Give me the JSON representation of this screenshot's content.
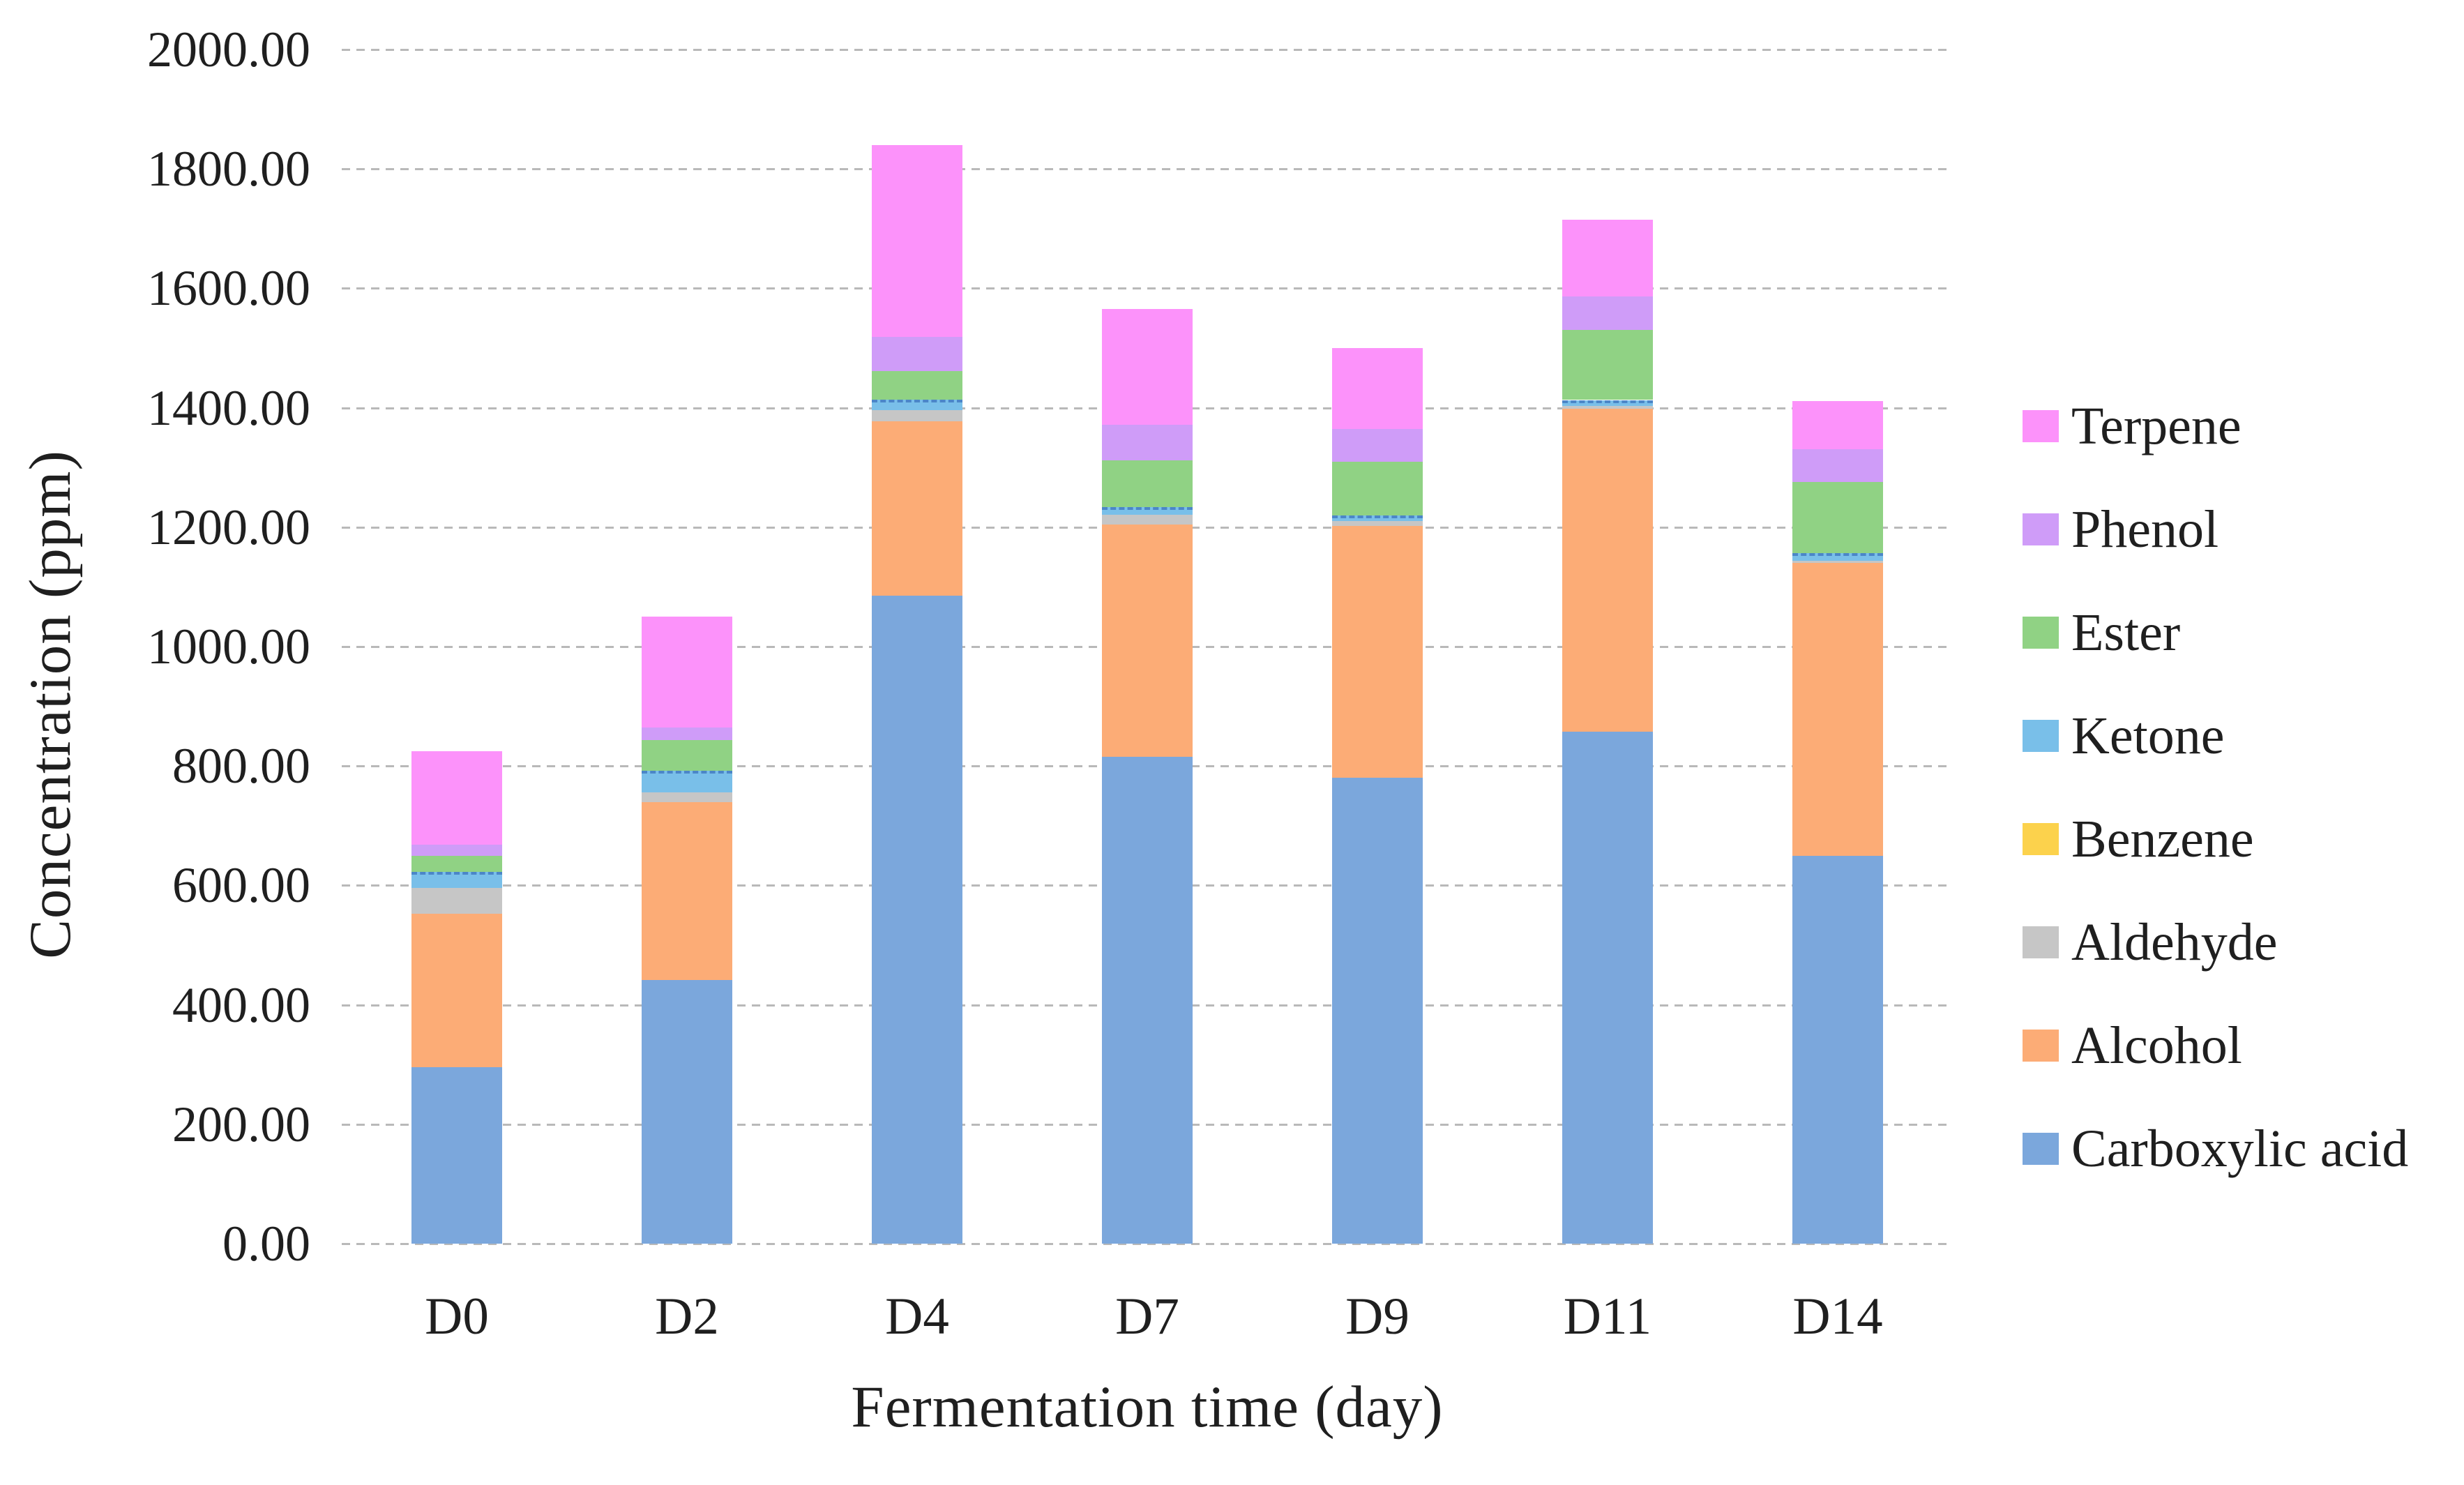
{
  "chart_data": {
    "type": "bar",
    "stacked": true,
    "title": "",
    "xlabel": "Fermentation time (day)",
    "ylabel": "Concentration (ppm)",
    "categories": [
      "D0",
      "D2",
      "D4",
      "D7",
      "D9",
      "D11",
      "D14"
    ],
    "series": [
      {
        "name": "Carboxylic acid",
        "color": "#7BA7DC",
        "values": [
          295,
          442,
          1085,
          815,
          780,
          858,
          650
        ]
      },
      {
        "name": "Alcohol",
        "color": "#FCAC76",
        "values": [
          258,
          298,
          292,
          390,
          422,
          540,
          490
        ]
      },
      {
        "name": "Aldehyde",
        "color": "#C6C6C6",
        "values": [
          43,
          16,
          19,
          16,
          8,
          5,
          4
        ]
      },
      {
        "name": "Benzene",
        "color": "#FCD24C",
        "values": [
          0,
          0,
          0,
          0,
          0,
          0,
          0
        ]
      },
      {
        "name": "Ketone",
        "color": "#79BFE9",
        "values": [
          27,
          36,
          17,
          13,
          10,
          10,
          12
        ],
        "border_style": "dashed-top"
      },
      {
        "name": "Ester",
        "color": "#90D284",
        "values": [
          27,
          51,
          48,
          78,
          90,
          117,
          120
        ]
      },
      {
        "name": "Phenol",
        "color": "#CF9CF8",
        "values": [
          18,
          22,
          58,
          60,
          55,
          57,
          55
        ]
      },
      {
        "name": "Terpene",
        "color": "#FC92FA",
        "values": [
          157,
          185,
          321,
          193,
          135,
          128,
          80
        ]
      }
    ],
    "bar_totals": [
      825,
      1050,
      1840,
      1565,
      1500,
      1715,
      1411
    ],
    "ylim": [
      0,
      2000
    ],
    "grid": true,
    "gridline_color": "#b9b9b9",
    "legend_position": "right",
    "legend_order_top_to_bottom": [
      "Terpene",
      "Phenol",
      "Ester",
      "Ketone",
      "Benzene",
      "Aldehyde",
      "Alcohol",
      "Carboxylic acid"
    ],
    "y_ticks": [
      {
        "value": 0,
        "label": "0.00"
      },
      {
        "value": 200,
        "label": "200.00"
      },
      {
        "value": 400,
        "label": "400.00"
      },
      {
        "value": 600,
        "label": "600.00"
      },
      {
        "value": 800,
        "label": "800.00"
      },
      {
        "value": 1000,
        "label": "1000.00"
      },
      {
        "value": 1200,
        "label": "1200.00"
      },
      {
        "value": 1400,
        "label": "1400.00"
      },
      {
        "value": 1600,
        "label": "1600.00"
      },
      {
        "value": 1800,
        "label": "1800.00"
      },
      {
        "value": 2000,
        "label": "2000.00"
      }
    ]
  }
}
